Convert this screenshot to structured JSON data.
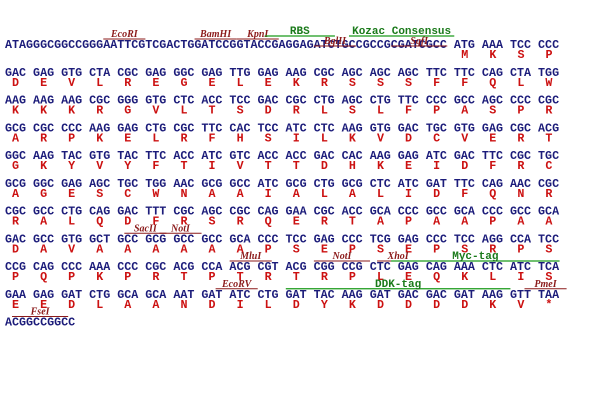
{
  "rows": [
    {
      "dna": "ATAGGGCGGCCGGGAATTCGTCGACTGGATCCGGTACCGAGGAGATCTGCCGCCGCGATCGCC ATG AAA TCC CCC",
      "aa": "MKSP",
      "sites": [
        "EcoRI",
        "BamHI",
        "KpnI",
        "BglII",
        "SgfI"
      ],
      "tags": [
        "RBS",
        "Kozac Consensus"
      ]
    },
    {
      "dna": "GAC GAG GTG CTA CGC GAG GGC GAG TTG GAG AAG CGC AGC AGC AGC TTC TTC CAG CTA TGG",
      "aa": "DEVLREGELEKRSSSFFQLW"
    },
    {
      "dna": "AAG AAG AAG CGC GGG GTG CTC ACC TCC GAC CGC CTG AGC CTG TTC CCC GCC AGC CCC CGC",
      "aa": "KKKRGVLTSDRLSLFPASPR"
    },
    {
      "dna": "GCG CGC CCC AAG GAG CTG CGC TTC CAC TCC ATC CTC AAG GTG GAC TGC GTG GAG CGC ACG",
      "aa": "ARPKELRFHSILKVDCVERT"
    },
    {
      "dna": "GGC AAG TAC GTG TAC TTC ACC ATC GTC ACC ACC GAC CAC AAG GAG ATC GAC TTC CGC TGC",
      "aa": "GKYVYFTIVTTDHKEIDFRC"
    },
    {
      "dna": "GCG GGC GAG AGC TGC TGG AAC GCG GCC ATC GCG CTG GCG CTC ATC GAT TTC CAG AAC CGC",
      "aa": "AGESCWNAAIALALIDFQNR"
    },
    {
      "dna": "CGC GCC CTG CAG GAC TTT CGC AGC CGC CAG GAA CGC ACC GCA CCC GCC GCA CCC GCC GCA",
      "aa": "RALQDFRSRQERTAPAAPAA"
    },
    {
      "dna": "GAC GCC GTG GCT GCC GCG GCC GCC GCA CCC TCC GAG CCC TCG GAG CCC TCC AGG CCA TCC",
      "aa": "DAVAAAAAAPSEPSEPSRPS",
      "sites": [
        "SacII",
        "NotI"
      ]
    },
    {
      "dna": "CCG CAG CCC AAA CCC CGC ACG CCA ACG CGT ACG CGG CCG CTC GAG CAG AAA CTC ATC TCA",
      "aa": "PQPKPRTPTRTRPLEQKLIS",
      "sites": [
        "MluI",
        "NotI",
        "XhoI"
      ],
      "tags": [
        "Myc-tag"
      ]
    },
    {
      "dna": "GAA GAG GAT CTG GCA GCA AAT GAT ATC CTG GAT TAC AAG GAT GAC GAC GAT AAG GTT TAA",
      "aa": "EEDLAANDILDYKDDDDKV*",
      "sites": [
        "EcoRV",
        "PmeI"
      ],
      "tags": [
        "DDK-tag"
      ]
    },
    {
      "dna": "ACGGCCGGCC",
      "sites": [
        "FseI"
      ]
    }
  ]
}
